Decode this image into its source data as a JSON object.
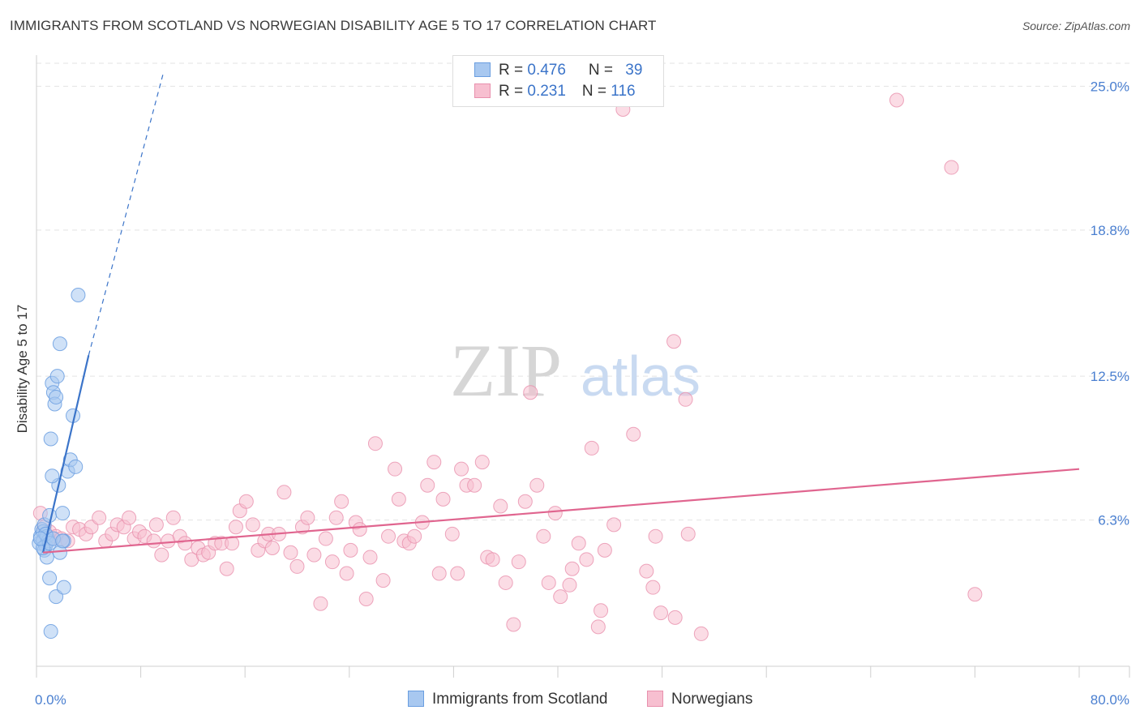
{
  "title": "IMMIGRANTS FROM SCOTLAND VS NORWEGIAN DISABILITY AGE 5 TO 17 CORRELATION CHART",
  "source": "Source: ZipAtlas.com",
  "watermark": {
    "zip": "ZIP",
    "atlas": "atlas"
  },
  "legend": {
    "rows": [
      {
        "r_label": "R = ",
        "r_value": "0.476",
        "n_label": "N = ",
        "n_value": "39",
        "color": "#a8c8f0",
        "border": "#6a9ee0"
      },
      {
        "r_label": "R = ",
        "r_value": "0.231",
        "n_label": "N = ",
        "n_value": "116",
        "color": "#f7bfd0",
        "border": "#e890ad"
      }
    ]
  },
  "bottom_legend": [
    {
      "label": "Immigrants from Scotland",
      "color": "#a8c8f0",
      "border": "#6a9ee0"
    },
    {
      "label": "Norwegians",
      "color": "#f7bfd0",
      "border": "#e890ad"
    }
  ],
  "colors": {
    "blue_point": "#a8c8f0",
    "blue_stroke": "#6a9ee0",
    "blue_line": "#3b74c9",
    "pink_point": "#f7bfd0",
    "pink_stroke": "#e890ad",
    "pink_line": "#e0658f",
    "grid": "#e3e3e3",
    "axis_label": "#4a7fd0"
  },
  "chart_data": {
    "type": "scatter",
    "title": "IMMIGRANTS FROM SCOTLAND VS NORWEGIAN DISABILITY AGE 5 TO 17 CORRELATION CHART",
    "xlabel": "",
    "ylabel": "Disability Age 5 to 17",
    "xlim": [
      0,
      80
    ],
    "ylim": [
      0,
      26.2
    ],
    "x_tick_labels": [
      "0.0%",
      "80.0%"
    ],
    "y_ticks": [
      6.3,
      12.5,
      18.8,
      25.0
    ],
    "y_tick_labels": [
      "6.3%",
      "12.5%",
      "18.8%",
      "25.0%"
    ],
    "grid": true,
    "legend_position": "top-center",
    "series": [
      {
        "name": "Immigrants from Scotland",
        "points": [
          [
            0.2,
            5.3
          ],
          [
            0.3,
            5.6
          ],
          [
            0.4,
            5.9
          ],
          [
            0.5,
            5.8
          ],
          [
            0.5,
            5.4
          ],
          [
            0.6,
            6.1
          ],
          [
            0.7,
            5.2
          ],
          [
            0.8,
            5.6
          ],
          [
            0.6,
            5.0
          ],
          [
            0.9,
            5.4
          ],
          [
            1.0,
            6.5
          ],
          [
            1.1,
            9.8
          ],
          [
            1.2,
            12.2
          ],
          [
            1.3,
            11.8
          ],
          [
            1.4,
            11.3
          ],
          [
            1.5,
            11.6
          ],
          [
            1.6,
            12.5
          ],
          [
            1.8,
            13.9
          ],
          [
            1.7,
            7.8
          ],
          [
            1.2,
            8.2
          ],
          [
            2.0,
            6.6
          ],
          [
            2.1,
            5.4
          ],
          [
            2.4,
            8.4
          ],
          [
            2.6,
            8.9
          ],
          [
            2.8,
            10.8
          ],
          [
            3.0,
            8.6
          ],
          [
            3.2,
            16.0
          ],
          [
            0.8,
            4.7
          ],
          [
            1.0,
            3.8
          ],
          [
            1.5,
            3.0
          ],
          [
            2.1,
            3.4
          ],
          [
            1.1,
            1.5
          ],
          [
            0.5,
            5.1
          ],
          [
            0.7,
            5.7
          ],
          [
            1.0,
            5.3
          ],
          [
            1.3,
            5.5
          ],
          [
            1.8,
            4.9
          ],
          [
            0.3,
            5.5
          ],
          [
            2.0,
            5.4
          ]
        ]
      },
      {
        "name": "Norwegians",
        "points": [
          [
            0.3,
            6.6
          ],
          [
            0.6,
            6.0
          ],
          [
            1.0,
            5.8
          ],
          [
            1.2,
            5.5
          ],
          [
            1.5,
            5.6
          ],
          [
            1.9,
            5.5
          ],
          [
            2.4,
            5.4
          ],
          [
            2.8,
            6.0
          ],
          [
            3.3,
            5.9
          ],
          [
            3.8,
            5.7
          ],
          [
            4.2,
            6.0
          ],
          [
            4.8,
            6.4
          ],
          [
            5.3,
            5.4
          ],
          [
            5.8,
            5.7
          ],
          [
            6.2,
            6.1
          ],
          [
            6.7,
            6.0
          ],
          [
            7.1,
            6.4
          ],
          [
            7.5,
            5.5
          ],
          [
            7.9,
            5.8
          ],
          [
            8.3,
            5.6
          ],
          [
            9.0,
            5.4
          ],
          [
            9.2,
            6.1
          ],
          [
            9.6,
            4.8
          ],
          [
            10.1,
            5.4
          ],
          [
            10.5,
            6.4
          ],
          [
            11.0,
            5.6
          ],
          [
            11.4,
            5.3
          ],
          [
            11.9,
            4.6
          ],
          [
            12.4,
            5.1
          ],
          [
            12.8,
            4.8
          ],
          [
            13.2,
            4.9
          ],
          [
            13.7,
            5.3
          ],
          [
            14.2,
            5.3
          ],
          [
            14.6,
            4.2
          ],
          [
            15.0,
            5.3
          ],
          [
            15.3,
            6.0
          ],
          [
            15.6,
            6.7
          ],
          [
            16.1,
            7.1
          ],
          [
            16.6,
            6.1
          ],
          [
            17.0,
            5.0
          ],
          [
            17.5,
            5.4
          ],
          [
            17.8,
            5.7
          ],
          [
            18.1,
            5.1
          ],
          [
            18.6,
            5.7
          ],
          [
            19.0,
            7.5
          ],
          [
            19.5,
            4.9
          ],
          [
            20.0,
            4.3
          ],
          [
            20.4,
            6.0
          ],
          [
            20.8,
            6.4
          ],
          [
            21.3,
            4.8
          ],
          [
            21.8,
            2.7
          ],
          [
            22.2,
            5.5
          ],
          [
            22.7,
            4.5
          ],
          [
            23.0,
            6.4
          ],
          [
            23.4,
            7.1
          ],
          [
            23.8,
            4.0
          ],
          [
            24.1,
            5.0
          ],
          [
            24.5,
            6.2
          ],
          [
            24.8,
            5.9
          ],
          [
            25.3,
            2.9
          ],
          [
            25.6,
            4.7
          ],
          [
            26.0,
            9.6
          ],
          [
            26.6,
            3.7
          ],
          [
            27.0,
            5.6
          ],
          [
            27.5,
            8.5
          ],
          [
            27.8,
            7.2
          ],
          [
            28.2,
            5.4
          ],
          [
            28.6,
            5.3
          ],
          [
            29.0,
            5.6
          ],
          [
            29.6,
            6.2
          ],
          [
            30.0,
            7.8
          ],
          [
            30.5,
            8.8
          ],
          [
            30.9,
            4.0
          ],
          [
            31.2,
            7.2
          ],
          [
            31.9,
            5.7
          ],
          [
            32.3,
            4.0
          ],
          [
            32.6,
            8.5
          ],
          [
            33.0,
            7.8
          ],
          [
            33.6,
            7.8
          ],
          [
            34.2,
            8.8
          ],
          [
            34.6,
            4.7
          ],
          [
            35.0,
            4.6
          ],
          [
            35.6,
            6.9
          ],
          [
            36.0,
            3.6
          ],
          [
            36.6,
            1.8
          ],
          [
            37.0,
            4.5
          ],
          [
            37.5,
            7.1
          ],
          [
            37.9,
            11.8
          ],
          [
            38.4,
            7.8
          ],
          [
            38.9,
            5.6
          ],
          [
            39.3,
            3.6
          ],
          [
            39.8,
            6.6
          ],
          [
            40.2,
            3.0
          ],
          [
            40.9,
            3.5
          ],
          [
            41.1,
            4.2
          ],
          [
            41.6,
            5.3
          ],
          [
            42.2,
            4.6
          ],
          [
            42.6,
            9.4
          ],
          [
            43.1,
            1.7
          ],
          [
            43.3,
            2.4
          ],
          [
            43.6,
            5.0
          ],
          [
            44.3,
            6.1
          ],
          [
            45.0,
            24.0
          ],
          [
            45.8,
            10.0
          ],
          [
            46.8,
            4.1
          ],
          [
            47.3,
            3.4
          ],
          [
            47.5,
            5.6
          ],
          [
            47.9,
            2.3
          ],
          [
            48.9,
            14.0
          ],
          [
            49.0,
            2.1
          ],
          [
            49.8,
            11.5
          ],
          [
            50.0,
            5.7
          ],
          [
            51.0,
            1.4
          ],
          [
            66.0,
            24.4
          ],
          [
            70.2,
            21.5
          ],
          [
            72.0,
            3.1
          ]
        ]
      }
    ],
    "trendlines": [
      {
        "series": "Immigrants from Scotland",
        "solid": [
          [
            0.5,
            4.9
          ],
          [
            4.0,
            13.4
          ]
        ],
        "dashed": [
          [
            4.0,
            13.4
          ],
          [
            9.7,
            25.5
          ]
        ]
      },
      {
        "series": "Norwegians",
        "solid": [
          [
            0.5,
            4.9
          ],
          [
            80.0,
            8.5
          ]
        ]
      }
    ]
  }
}
